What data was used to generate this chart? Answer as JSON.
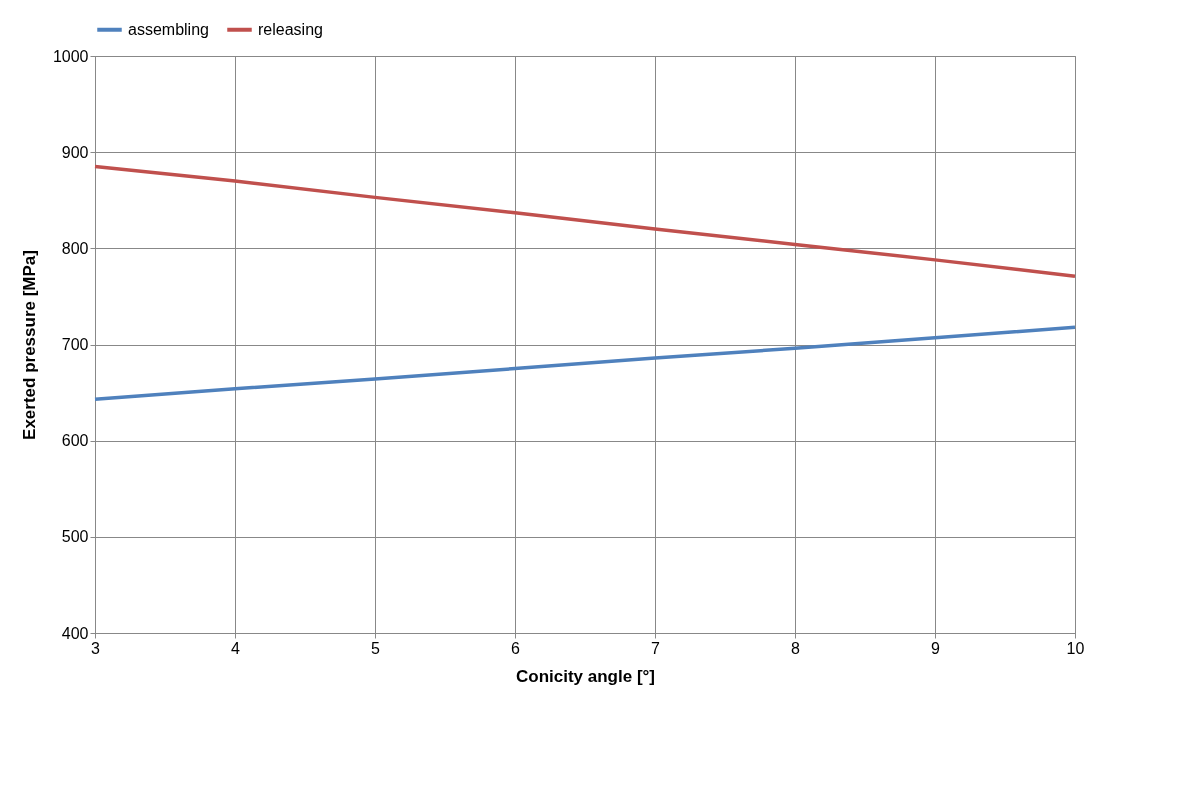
{
  "chart_data": {
    "type": "line",
    "xlabel": "Conicity angle [°]",
    "ylabel": "Exerted pressure  [MPa]",
    "x": [
      3,
      4,
      5,
      6,
      7,
      8,
      9,
      10
    ],
    "series": [
      {
        "name": "assembling",
        "color": "#4f81bd",
        "values": [
          643,
          654,
          664,
          675,
          686,
          696,
          707,
          718
        ]
      },
      {
        "name": "releasing",
        "color": "#c0504d",
        "values": [
          885,
          870,
          853,
          837,
          820,
          804,
          788,
          771
        ]
      }
    ],
    "xlim": [
      3,
      10
    ],
    "xticks": [
      3,
      4,
      5,
      6,
      7,
      8,
      9,
      10
    ],
    "ylim": [
      400,
      1000
    ],
    "yticks": [
      400,
      500,
      600,
      700,
      800,
      900,
      1000
    ],
    "grid": true,
    "legend": "top",
    "marker": "none",
    "line_style": "solid"
  }
}
